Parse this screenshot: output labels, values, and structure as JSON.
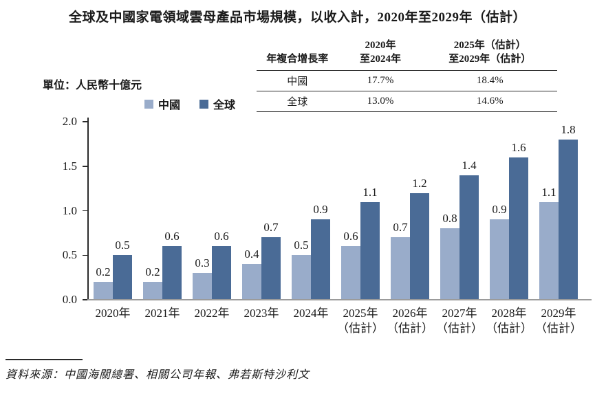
{
  "title": "全球及中國家電領域雲母產品市場規模，以收入計，2020年至2029年（估計）",
  "unit_label": "單位：人民幣十億元",
  "legend": {
    "china": "中國",
    "global": "全球"
  },
  "colors": {
    "china_bar": "#99ACCA",
    "global_bar": "#4A6B96",
    "axis": "#2a2a2a",
    "baseline": "#9b9b9b"
  },
  "cagr_table": {
    "header": {
      "col0": "年複合增長率",
      "col1_line1": "2020年",
      "col1_line2": "至2024年",
      "col2_line1": "2025年（估計）",
      "col2_line2": "至2029年（估計）"
    },
    "rows": [
      {
        "label": "中國",
        "v1": "17.7%",
        "v2": "18.4%"
      },
      {
        "label": "全球",
        "v1": "13.0%",
        "v2": "14.6%"
      }
    ]
  },
  "chart_data": {
    "type": "bar",
    "categories": [
      "2020年",
      "2021年",
      "2022年",
      "2023年",
      "2024年",
      "2025年",
      "2026年",
      "2027年",
      "2028年",
      "2029年"
    ],
    "x_tick_labels": [
      {
        "line1": "2020年",
        "line2": ""
      },
      {
        "line1": "2021年",
        "line2": ""
      },
      {
        "line1": "2022年",
        "line2": ""
      },
      {
        "line1": "2023年",
        "line2": ""
      },
      {
        "line1": "2024年",
        "line2": ""
      },
      {
        "line1": "2025年",
        "line2": "（估計）"
      },
      {
        "line1": "2026年",
        "line2": "（估計）"
      },
      {
        "line1": "2027年",
        "line2": "（估計）"
      },
      {
        "line1": "2028年",
        "line2": "（估計）"
      },
      {
        "line1": "2029年",
        "line2": "（估計）"
      }
    ],
    "series": [
      {
        "name": "中國",
        "color": "#99ACCA",
        "values": [
          0.2,
          0.2,
          0.3,
          0.4,
          0.5,
          0.6,
          0.7,
          0.8,
          0.9,
          1.1
        ]
      },
      {
        "name": "全球",
        "color": "#4A6B96",
        "values": [
          0.5,
          0.6,
          0.6,
          0.7,
          0.9,
          1.1,
          1.2,
          1.4,
          1.6,
          1.8
        ]
      }
    ],
    "title": "全球及中國家電領域雲母產品市場規模，以收入計，2020年至2029年（估計）",
    "xlabel": "",
    "ylabel": "單位：人民幣十億元",
    "ylim": [
      0,
      2.0
    ],
    "yticks": [
      "0.0",
      "0.5",
      "1.0",
      "1.5",
      "2.0"
    ],
    "grid": false,
    "legend_position": "top-left-above-plot",
    "value_labels": true
  },
  "source": "資料來源：中國海關總署、相關公司年報、弗若斯特沙利文"
}
